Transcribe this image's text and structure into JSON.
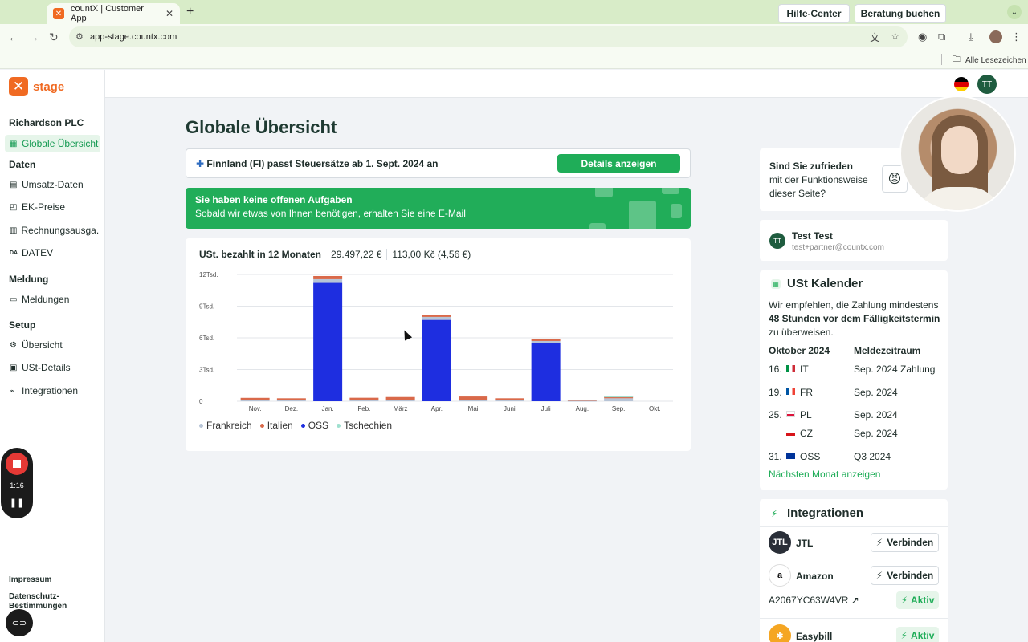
{
  "browser": {
    "tab_title": "countX | Customer App",
    "url": "app-stage.countx.com",
    "bookmarks_label": "Alle Lesezeichen"
  },
  "sidebar": {
    "logo_text": "stage",
    "company": "Richardson PLC",
    "items": [
      {
        "label": "Globale Übersicht",
        "icon": "grid-icon"
      },
      {
        "label": "Umsatz-Daten",
        "icon": "document-icon"
      },
      {
        "label": "EK-Preise",
        "icon": "bag-icon"
      },
      {
        "label": "Rechnungsausga...",
        "icon": "book-icon"
      },
      {
        "label": "DATEV",
        "icon": "datev-icon"
      },
      {
        "label": "Meldungen",
        "icon": "briefcase-icon"
      },
      {
        "label": "Übersicht",
        "icon": "gear-icon"
      },
      {
        "label": "USt-Details",
        "icon": "card-icon"
      },
      {
        "label": "Integrationen",
        "icon": "plug-icon"
      }
    ],
    "sections": [
      "Daten",
      "Meldung",
      "Setup"
    ],
    "footer_impressum": "Impressum",
    "footer_datenschutz_1": "Datenschutz-",
    "footer_datenschutz_2": "Bestimmungen"
  },
  "recorder": {
    "time": "1:16"
  },
  "header": {
    "help_label": "Hilfe-Center",
    "booking_label": "Beratung buchen",
    "avatar_initials": "TT"
  },
  "main": {
    "title": "Globale Übersicht",
    "notice_text": "Finnland (FI) passt Steuersätze ab 1. Sept. 2024 an",
    "notice_button": "Details anzeigen",
    "banner_title": "Sie haben keine offenen Aufgaben",
    "banner_text": "Sobald wir etwas von Ihnen benötigen, erhalten Sie eine E-Mail",
    "chart_title": "USt. bezahlt in 12 Monaten",
    "chart_total_eur": "29.497,22 €",
    "chart_total_czk": "113,00 Kč (4,56 €)"
  },
  "chart_data": {
    "type": "bar",
    "stacked": true,
    "categories": [
      "Nov.",
      "Dez.",
      "Jan.",
      "Feb.",
      "März",
      "Apr.",
      "Mai",
      "Juni",
      "Juli",
      "Aug.",
      "Sep.",
      "Okt."
    ],
    "y_tick_labels": [
      "0",
      "3Tsd.",
      "6Tsd.",
      "9Tsd.",
      "12Tsd."
    ],
    "y_ticks": [
      0,
      3000,
      6000,
      9000,
      12000
    ],
    "ylim": [
      0,
      12000
    ],
    "series": [
      {
        "name": "OSS",
        "color": "#1e2ee0",
        "values": [
          0,
          0,
          11200,
          0,
          0,
          7700,
          0,
          0,
          5500,
          0,
          0,
          0
        ]
      },
      {
        "name": "Frankreich",
        "color": "#b7c4d6",
        "values": [
          100,
          80,
          350,
          80,
          150,
          280,
          100,
          80,
          200,
          40,
          280,
          0
        ]
      },
      {
        "name": "Italien",
        "color": "#d9694a",
        "values": [
          220,
          200,
          300,
          250,
          250,
          220,
          350,
          200,
          200,
          100,
          150,
          0
        ]
      },
      {
        "name": "Tschechien",
        "color": "#9fe0cf",
        "values": [
          0,
          0,
          0,
          0,
          0,
          0,
          0,
          0,
          0,
          0,
          20,
          0
        ]
      }
    ],
    "legend_order": [
      "Frankreich",
      "Italien",
      "OSS",
      "Tschechien"
    ],
    "legend_position": "bottom-left",
    "grid": true
  },
  "feedback": {
    "line1": "Sind Sie zufrieden",
    "line2": "mit der Funktionsweise",
    "line3": "dieser Seite?",
    "emoji": "😡"
  },
  "user": {
    "initials": "TT",
    "name": "Test Test",
    "email": "test+partner@countx.com"
  },
  "calendar": {
    "title": "USt Kalender",
    "desc_1": "Wir empfehlen, die Zahlung mindestens",
    "desc_bold": "48 Stunden vor dem Fälligkeitstermin",
    "desc_2": "zu überweisen.",
    "col_month": "Oktober 2024",
    "col_period": "Meldezeitraum",
    "rows": [
      {
        "day": "16.",
        "cc": "IT",
        "period": "Sep. 2024 Zahlung"
      },
      {
        "day": "19.",
        "cc": "FR",
        "period": "Sep. 2024"
      },
      {
        "day": "25.",
        "cc": "PL",
        "period": "Sep. 2024"
      },
      {
        "day": "",
        "cc": "CZ",
        "period": "Sep. 2024"
      },
      {
        "day": "31.",
        "cc": "OSS",
        "period": "Q3 2024"
      }
    ],
    "next_month": "Nächsten Monat anzeigen"
  },
  "integrations": {
    "title": "Integrationen",
    "items": [
      {
        "name": "JTL",
        "action": "Verbinden"
      },
      {
        "name": "Amazon",
        "action": "Verbinden",
        "account_id": "A2067YC63W4VR",
        "status": "Aktiv"
      },
      {
        "name": "Easybill",
        "status": "Aktiv"
      }
    ]
  }
}
